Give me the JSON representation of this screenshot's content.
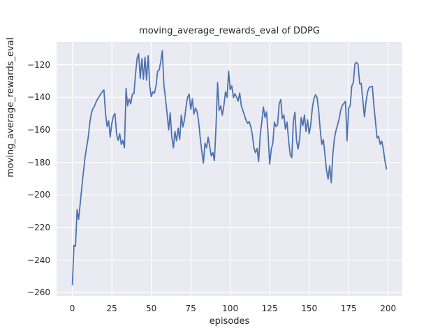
{
  "chart_data": {
    "type": "line",
    "title": "moving_average_rewards_eval of DDPG",
    "xlabel": "episodes",
    "ylabel": "moving_average_rewards_eval",
    "x_ticks": [
      0,
      25,
      50,
      75,
      100,
      125,
      150,
      175,
      200
    ],
    "y_ticks": [
      -120,
      -140,
      -160,
      -180,
      -200,
      -220,
      -240,
      -260
    ],
    "xlim": [
      -10,
      209
    ],
    "ylim": [
      -262,
      -106
    ],
    "grid": true,
    "legend_position": "none",
    "style": {
      "axes_background": "#eaeaf2",
      "grid_color": "#ffffff",
      "text_color": "#262626",
      "line_color": "#4c72b0"
    },
    "series": [
      {
        "name": "moving_average_rewards_eval",
        "color": "#4c72b0",
        "points": [
          [
            0,
            -255
          ],
          [
            1,
            -231
          ],
          [
            2,
            -231.5
          ],
          [
            3,
            -209
          ],
          [
            4,
            -215
          ],
          [
            5,
            -205
          ],
          [
            6,
            -195
          ],
          [
            7,
            -186
          ],
          [
            8,
            -177
          ],
          [
            9,
            -171
          ],
          [
            10,
            -165
          ],
          [
            11,
            -156
          ],
          [
            12,
            -150
          ],
          [
            13,
            -147
          ],
          [
            14,
            -145.5
          ],
          [
            15,
            -143
          ],
          [
            16,
            -141
          ],
          [
            17,
            -139.5
          ],
          [
            18,
            -138
          ],
          [
            19,
            -136.5
          ],
          [
            20,
            -135.5
          ],
          [
            21,
            -150
          ],
          [
            22,
            -158
          ],
          [
            23,
            -154.5
          ],
          [
            24,
            -164.5
          ],
          [
            25,
            -156
          ],
          [
            26,
            -151.5
          ],
          [
            27,
            -150
          ],
          [
            28,
            -162.5
          ],
          [
            29,
            -166.5
          ],
          [
            30,
            -162.5
          ],
          [
            31,
            -169
          ],
          [
            32,
            -166.5
          ],
          [
            33,
            -171
          ],
          [
            34,
            -134.6
          ],
          [
            35,
            -145.3
          ],
          [
            36,
            -141
          ],
          [
            37,
            -144
          ],
          [
            38,
            -138
          ],
          [
            39,
            -137.8
          ],
          [
            40,
            -126
          ],
          [
            41,
            -116
          ],
          [
            42,
            -113.3
          ],
          [
            43,
            -128.5
          ],
          [
            44,
            -116.3
          ],
          [
            45,
            -129
          ],
          [
            46,
            -115.5
          ],
          [
            47,
            -129.5
          ],
          [
            48,
            -114.5
          ],
          [
            49,
            -133
          ],
          [
            50,
            -139.6
          ],
          [
            51,
            -136.7
          ],
          [
            52,
            -137.5
          ],
          [
            53,
            -133
          ],
          [
            54,
            -124
          ],
          [
            55,
            -123.3
          ],
          [
            56,
            -118
          ],
          [
            57,
            -111.5
          ],
          [
            58,
            -132.4
          ],
          [
            59,
            -141
          ],
          [
            60,
            -150
          ],
          [
            61,
            -160
          ],
          [
            62,
            -149.6
          ],
          [
            63,
            -164.6
          ],
          [
            64,
            -171
          ],
          [
            65,
            -161
          ],
          [
            66,
            -166.7
          ],
          [
            67,
            -159
          ],
          [
            68,
            -166
          ],
          [
            69,
            -151
          ],
          [
            70,
            -158.2
          ],
          [
            71,
            -154
          ],
          [
            72,
            -146
          ],
          [
            73,
            -140
          ],
          [
            74,
            -138.1
          ],
          [
            75,
            -147.4
          ],
          [
            76,
            -141
          ],
          [
            77,
            -150.3
          ],
          [
            78,
            -146.7
          ],
          [
            79,
            -148.9
          ],
          [
            80,
            -155
          ],
          [
            81,
            -165
          ],
          [
            82,
            -173.2
          ],
          [
            83,
            -180.5
          ],
          [
            84,
            -168.2
          ],
          [
            85,
            -171
          ],
          [
            86,
            -164.5
          ],
          [
            87,
            -170
          ],
          [
            88,
            -176
          ],
          [
            89,
            -174
          ],
          [
            90,
            -179
          ],
          [
            91,
            -158
          ],
          [
            92,
            -131
          ],
          [
            93,
            -148.1
          ],
          [
            94,
            -145.3
          ],
          [
            95,
            -151
          ],
          [
            96,
            -145
          ],
          [
            97,
            -136.7
          ],
          [
            98,
            -140
          ],
          [
            99,
            -124
          ],
          [
            100,
            -135.3
          ],
          [
            101,
            -133
          ],
          [
            102,
            -140.3
          ],
          [
            103,
            -137.8
          ],
          [
            104,
            -140
          ],
          [
            105,
            -142.4
          ],
          [
            106,
            -137.4
          ],
          [
            107,
            -145.3
          ],
          [
            108,
            -148.1
          ],
          [
            109,
            -151
          ],
          [
            110,
            -154
          ],
          [
            111,
            -156
          ],
          [
            112,
            -155
          ],
          [
            113,
            -158
          ],
          [
            114,
            -163
          ],
          [
            115,
            -171
          ],
          [
            116,
            -174
          ],
          [
            117,
            -171.5
          ],
          [
            118,
            -179.5
          ],
          [
            119,
            -163
          ],
          [
            120,
            -155.3
          ],
          [
            121,
            -146
          ],
          [
            122,
            -152.4
          ],
          [
            123,
            -149
          ],
          [
            124,
            -163
          ],
          [
            125,
            -181
          ],
          [
            126,
            -172
          ],
          [
            127,
            -168
          ],
          [
            128,
            -155.3
          ],
          [
            129,
            -158
          ],
          [
            130,
            -157
          ],
          [
            131,
            -144
          ],
          [
            132,
            -141.5
          ],
          [
            133,
            -153.1
          ],
          [
            134,
            -151
          ],
          [
            135,
            -159.6
          ],
          [
            136,
            -155.3
          ],
          [
            137,
            -166.8
          ],
          [
            138,
            -175.3
          ],
          [
            139,
            -177
          ],
          [
            140,
            -155
          ],
          [
            141,
            -149.2
          ],
          [
            142,
            -167
          ],
          [
            143,
            -171.8
          ],
          [
            144,
            -165
          ],
          [
            145,
            -152.4
          ],
          [
            146,
            -157.5
          ],
          [
            147,
            -150.9
          ],
          [
            148,
            -161
          ],
          [
            149,
            -153.9
          ],
          [
            150,
            -162.4
          ],
          [
            151,
            -157
          ],
          [
            152,
            -146.7
          ],
          [
            153,
            -141
          ],
          [
            154,
            -138.5
          ],
          [
            155,
            -140
          ],
          [
            156,
            -148
          ],
          [
            157,
            -160
          ],
          [
            158,
            -168.9
          ],
          [
            159,
            -166
          ],
          [
            160,
            -175
          ],
          [
            161,
            -185
          ],
          [
            162,
            -190.3
          ],
          [
            163,
            -182
          ],
          [
            164,
            -192.5
          ],
          [
            165,
            -175.3
          ],
          [
            166,
            -165.3
          ],
          [
            167,
            -160.3
          ],
          [
            168,
            -157
          ],
          [
            169,
            -153.2
          ],
          [
            170,
            -148.1
          ],
          [
            171,
            -145
          ],
          [
            172,
            -143.8
          ],
          [
            173,
            -142.5
          ],
          [
            174,
            -166.7
          ],
          [
            175,
            -146.7
          ],
          [
            176,
            -145.2
          ],
          [
            177,
            -133.1
          ],
          [
            178,
            -131
          ],
          [
            179,
            -119.5
          ],
          [
            180,
            -118.5
          ],
          [
            181,
            -120
          ],
          [
            182,
            -131.7
          ],
          [
            183,
            -131.5
          ],
          [
            184,
            -142
          ],
          [
            185,
            -152
          ],
          [
            186,
            -143
          ],
          [
            187,
            -136.7
          ],
          [
            188,
            -134
          ],
          [
            189,
            -133.5
          ],
          [
            190,
            -133.3
          ],
          [
            191,
            -145.3
          ],
          [
            192,
            -155
          ],
          [
            193,
            -165
          ],
          [
            194,
            -164
          ],
          [
            195,
            -169
          ],
          [
            196,
            -167
          ],
          [
            197,
            -172
          ],
          [
            198,
            -179
          ],
          [
            199,
            -184
          ]
        ]
      }
    ]
  }
}
